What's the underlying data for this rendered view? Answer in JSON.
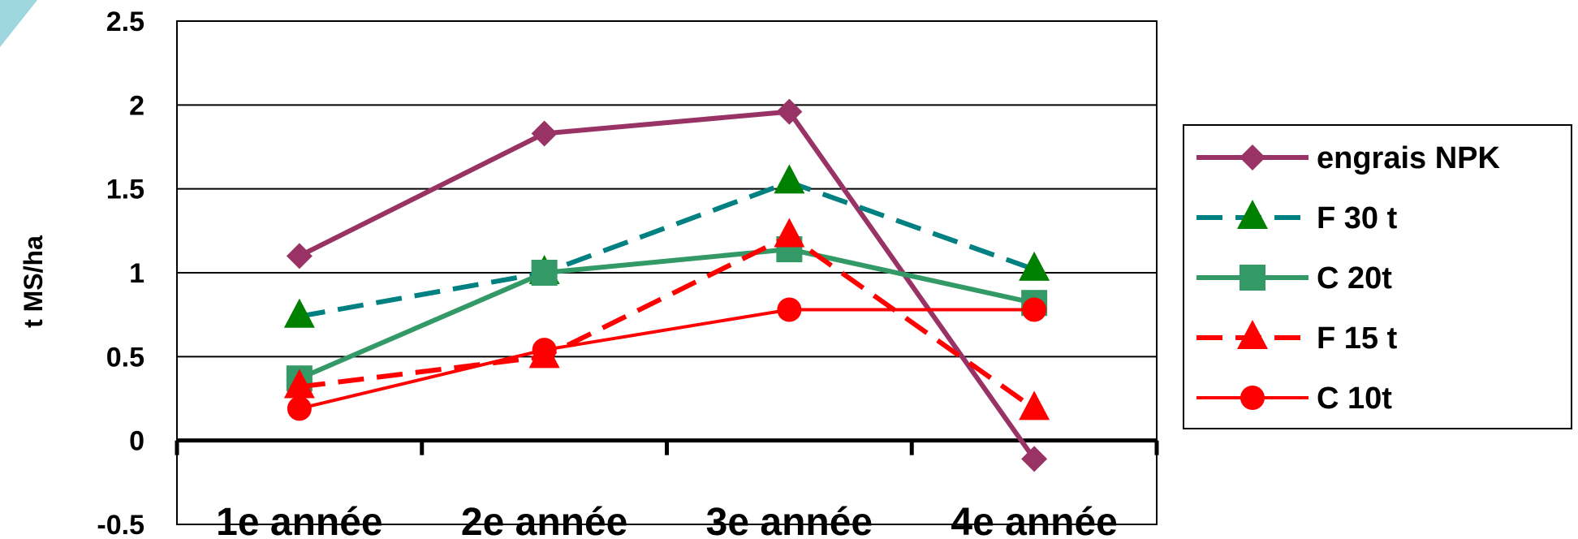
{
  "chart_data": {
    "type": "line",
    "categories": [
      "1e année",
      "2e année",
      "3e année",
      "4e année"
    ],
    "ylabel": "t MS/ha",
    "ylim": [
      -0.5,
      2.5
    ],
    "yticks": [
      "-0.5",
      "0",
      "0.5",
      "1",
      "1.5",
      "2",
      "2.5"
    ],
    "grid": true,
    "legend_position": "right",
    "series": [
      {
        "name": "engrais NPK",
        "values": [
          1.1,
          1.83,
          1.96,
          -0.11
        ],
        "color": "#993366",
        "marker": "diamond",
        "dash": "solid"
      },
      {
        "name": "F 30 t",
        "values": [
          0.74,
          1.0,
          1.54,
          1.02
        ],
        "color": "#008080",
        "marker_color": "#008000",
        "marker": "triangle",
        "dash": "dashed"
      },
      {
        "name": "C 20t",
        "values": [
          0.37,
          1.0,
          1.14,
          0.82
        ],
        "color": "#339966",
        "marker": "square",
        "dash": "solid"
      },
      {
        "name": "F 15 t",
        "values": [
          0.32,
          0.5,
          1.22,
          0.19
        ],
        "color": "#ff0000",
        "marker": "triangle",
        "dash": "dashed"
      },
      {
        "name": "C 10t",
        "values": [
          0.19,
          0.54,
          0.78,
          0.78
        ],
        "color": "#ff0000",
        "marker": "circle",
        "dash": "solid"
      }
    ]
  }
}
